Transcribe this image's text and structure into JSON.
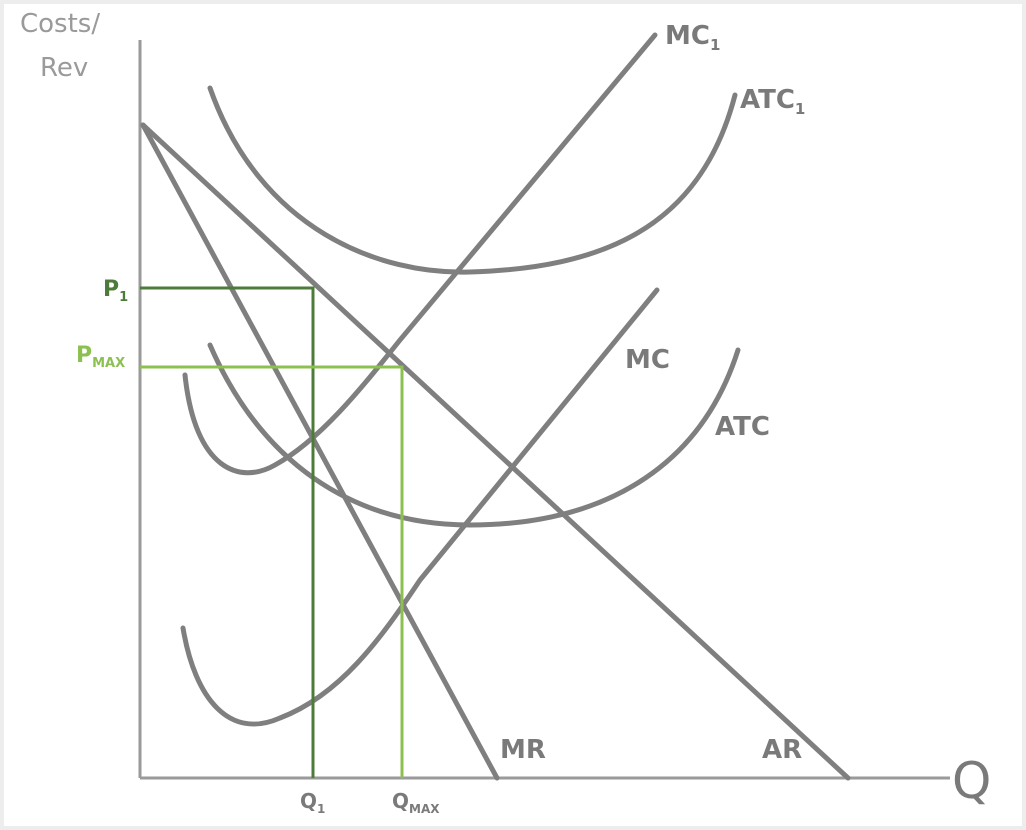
{
  "axes": {
    "y_label": [
      "Costs/",
      "Rev"
    ],
    "x_label": "Q"
  },
  "curves": [
    {
      "label": "MC",
      "subscript": "1"
    },
    {
      "label": "ATC",
      "subscript": "1"
    },
    {
      "label": "MC"
    },
    {
      "label": "ATC"
    },
    {
      "label": "MR"
    },
    {
      "label": "AR"
    }
  ],
  "prices": [
    {
      "label": "P",
      "subscript": "1"
    },
    {
      "label": "P",
      "subscript": "MAX"
    }
  ],
  "quantities": [
    {
      "label": "Q",
      "subscript": "1"
    },
    {
      "label": "Q",
      "subscript": "MAX"
    }
  ]
}
